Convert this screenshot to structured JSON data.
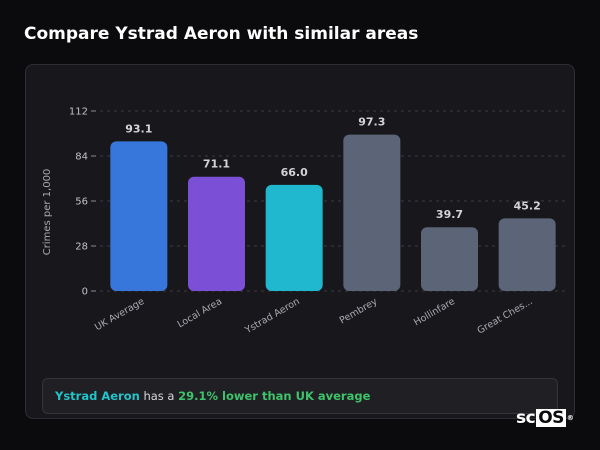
{
  "page": {
    "title": "Compare Ystrad Aeron with similar areas"
  },
  "chart_data": {
    "type": "bar",
    "ylabel": "Crimes per 1,000",
    "xlabel": "",
    "ylim": [
      0,
      112
    ],
    "yticks": [
      0,
      28,
      56,
      84,
      112
    ],
    "grid": true,
    "categories": [
      "UK Average",
      "Local Area",
      "Ystrad Aeron",
      "Pembrey",
      "Hollinfare",
      "Great Ches..."
    ],
    "values": [
      93.1,
      71.1,
      66.0,
      97.3,
      39.7,
      45.2
    ],
    "value_labels": [
      "93.1",
      "71.1",
      "66.0",
      "97.3",
      "39.7",
      "45.2"
    ],
    "colors": [
      "#3777db",
      "#7b4fd6",
      "#1fb8cf",
      "#5b6577",
      "#5b6577",
      "#5b6577"
    ]
  },
  "insight": {
    "area": "Ystrad Aeron",
    "middle": " has a ",
    "difference": "29.1% lower than UK average"
  },
  "brand": {
    "prefix": "sc",
    "highlight": "OS",
    "mark": "®"
  }
}
